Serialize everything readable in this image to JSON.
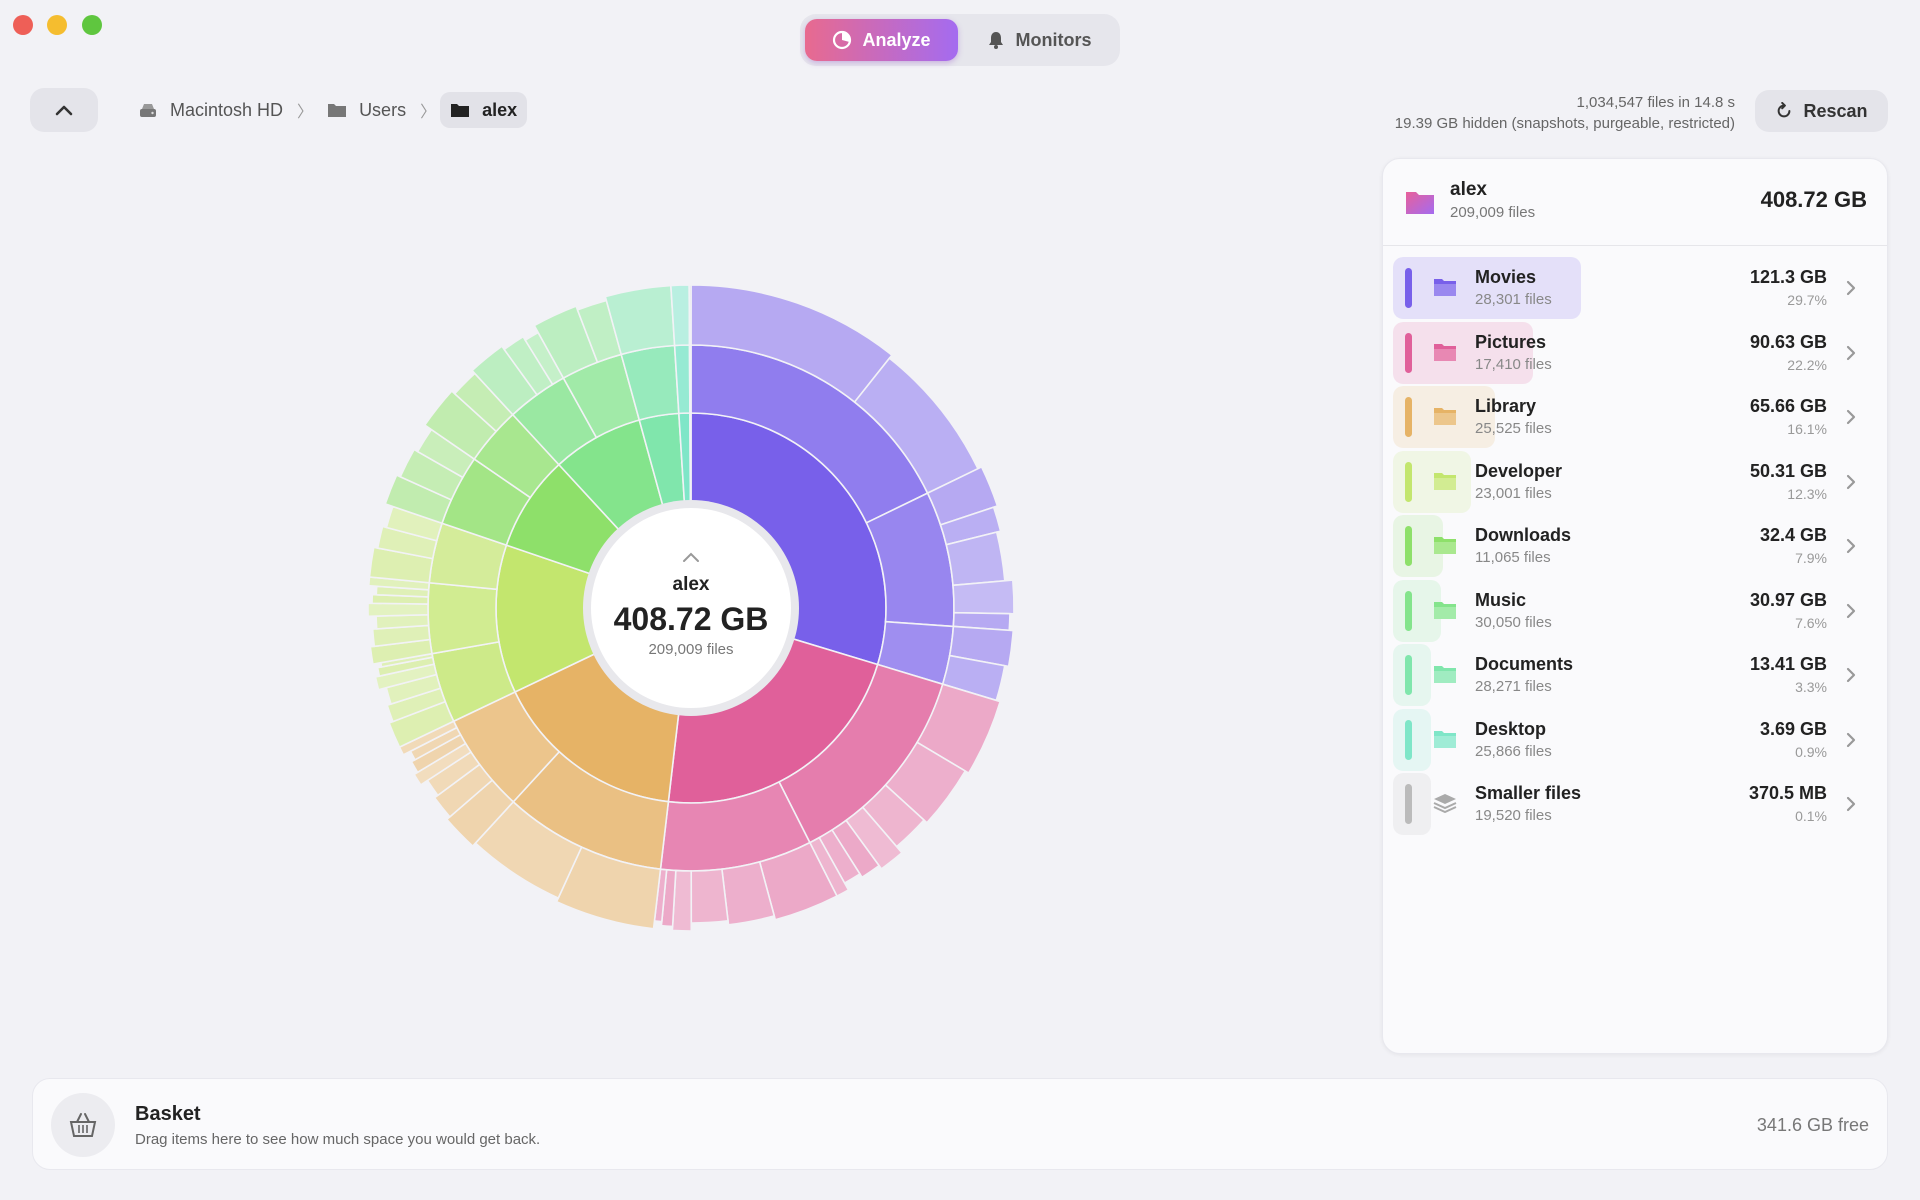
{
  "window": {
    "traffic_lights": [
      "close",
      "minimize",
      "zoom"
    ]
  },
  "mode_switch": {
    "analyze_label": "Analyze",
    "monitors_label": "Monitors",
    "active": "Analyze"
  },
  "breadcrumb": [
    {
      "label": "Macintosh HD",
      "icon": "disk-icon"
    },
    {
      "label": "Users",
      "icon": "folder-icon"
    },
    {
      "label": "alex",
      "icon": "folder-icon"
    }
  ],
  "scan": {
    "summary": "1,034,547 files in 14.8 s",
    "hidden": "19.39 GB hidden (snapshots, purgeable, restricted)",
    "rescan_label": "Rescan"
  },
  "center": {
    "name": "alex",
    "size": "408.72 GB",
    "files": "209,009 files"
  },
  "panel": {
    "header": {
      "name": "alex",
      "files": "209,009 files",
      "size": "408.72 GB"
    },
    "items": [
      {
        "name": "Movies",
        "files": "28,301 files",
        "size": "121.3 GB",
        "percent": "29.7%",
        "fraction": 0.297,
        "color": "#7860ea",
        "icon": "folder-icon"
      },
      {
        "name": "Pictures",
        "files": "17,410 files",
        "size": "90.63 GB",
        "percent": "22.2%",
        "fraction": 0.222,
        "color": "#e0609a",
        "icon": "folder-icon"
      },
      {
        "name": "Library",
        "files": "25,525 files",
        "size": "65.66 GB",
        "percent": "16.1%",
        "fraction": 0.161,
        "color": "#e6b366",
        "icon": "folder-icon"
      },
      {
        "name": "Developer",
        "files": "23,001 files",
        "size": "50.31 GB",
        "percent": "12.3%",
        "fraction": 0.123,
        "color": "#c3e66e",
        "icon": "folder-icon"
      },
      {
        "name": "Downloads",
        "files": "11,065 files",
        "size": "32.4 GB",
        "percent": "7.9%",
        "fraction": 0.079,
        "color": "#8ee06a",
        "icon": "folder-icon"
      },
      {
        "name": "Music",
        "files": "30,050 files",
        "size": "30.97 GB",
        "percent": "7.6%",
        "fraction": 0.076,
        "color": "#84e48c",
        "icon": "folder-icon"
      },
      {
        "name": "Documents",
        "files": "28,271 files",
        "size": "13.41 GB",
        "percent": "3.3%",
        "fraction": 0.033,
        "color": "#80e6ac",
        "icon": "folder-icon"
      },
      {
        "name": "Desktop",
        "files": "25,866 files",
        "size": "3.69 GB",
        "percent": "0.9%",
        "fraction": 0.009,
        "color": "#7fe6c8",
        "icon": "folder-icon"
      },
      {
        "name": "Smaller files",
        "files": "19,520 files",
        "size": "370.5 MB",
        "percent": "0.1%",
        "fraction": 0.001,
        "color": "#bbbbbb",
        "icon": "stack-icon"
      }
    ]
  },
  "basket": {
    "title": "Basket",
    "subtitle": "Drag items here to see how much space you would get back.",
    "free": "341.6 GB free"
  },
  "chart_data": {
    "type": "sunburst",
    "root": {
      "name": "alex",
      "value_gb": 408.72
    },
    "level1": [
      {
        "name": "Movies",
        "value_gb": 121.3,
        "color": "#7860ea"
      },
      {
        "name": "Pictures",
        "value_gb": 90.63,
        "color": "#e0609a"
      },
      {
        "name": "Library",
        "value_gb": 65.66,
        "color": "#e6b366"
      },
      {
        "name": "Developer",
        "value_gb": 50.31,
        "color": "#c3e66e"
      },
      {
        "name": "Downloads",
        "value_gb": 32.4,
        "color": "#8ee06a"
      },
      {
        "name": "Music",
        "value_gb": 30.97,
        "color": "#84e48c"
      },
      {
        "name": "Documents",
        "value_gb": 13.41,
        "color": "#80e6ac"
      },
      {
        "name": "Desktop",
        "value_gb": 3.69,
        "color": "#7fe6c8"
      },
      {
        "name": "Smaller files",
        "value_gb": 0.37,
        "color": "#bbbbbb"
      }
    ],
    "level2_splits": [
      [
        0.6,
        0.28,
        0.12
      ],
      [
        0.58,
        0.42
      ],
      [
        0.62,
        0.38
      ],
      [
        0.35,
        0.35,
        0.3
      ],
      [
        0.55,
        0.45
      ],
      [
        0.5,
        0.5
      ],
      [
        1.0
      ],
      [
        1.0
      ],
      [
        1.0
      ]
    ],
    "level3_splits": [
      [
        0.6,
        0.4
      ],
      [
        0.25,
        0.15,
        0.3,
        0.2,
        0.1
      ],
      [
        0.5,
        0.5
      ],
      [
        0.3,
        0.25,
        0.15,
        0.1,
        0.08,
        0.07,
        0.05
      ],
      [
        0.35,
        0.25,
        0.2,
        0.1,
        0.06,
        0.04
      ],
      [
        0.5,
        0.5
      ],
      [
        0.3,
        0.2,
        0.15,
        0.1,
        0.1,
        0.08,
        0.07
      ],
      [
        0.3,
        0.2,
        0.2,
        0.15,
        0.1,
        0.05
      ],
      [
        0.2,
        0.2,
        0.15,
        0.15,
        0.1,
        0.1,
        0.1
      ],
      [
        0.4,
        0.3,
        0.3
      ],
      [
        0.35,
        0.35,
        0.3
      ],
      [
        0.6,
        0.4
      ],
      [
        0.5,
        0.3,
        0.2
      ],
      [
        0.6,
        0.4
      ],
      [
        1.0
      ],
      [
        1.0
      ],
      [
        1.0
      ]
    ]
  }
}
